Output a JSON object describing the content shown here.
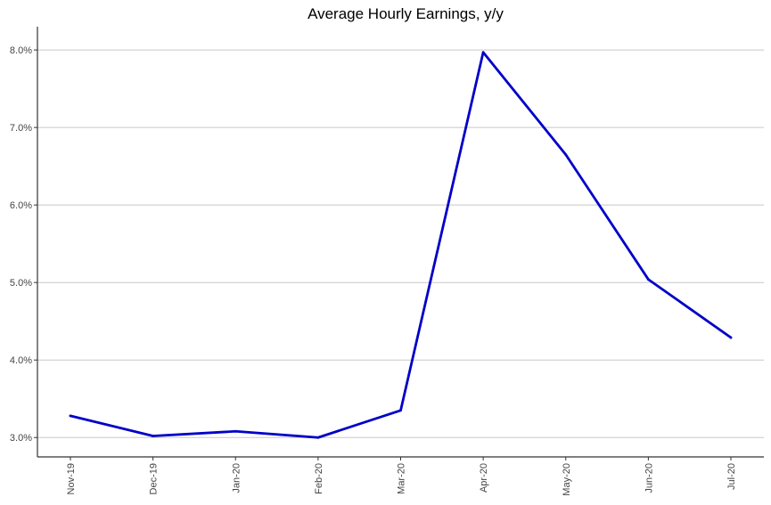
{
  "chart_data": {
    "type": "line",
    "title": "Average Hourly Earnings, y/y",
    "xlabel": "",
    "ylabel": "",
    "categories": [
      "Nov-19",
      "Dec-19",
      "Jan-20",
      "Feb-20",
      "Mar-20",
      "Apr-20",
      "May-20",
      "Jun-20",
      "Jul-20"
    ],
    "series": [
      {
        "values": [
          3.28,
          3.02,
          3.08,
          3.0,
          3.35,
          7.97,
          6.65,
          5.04,
          4.29
        ]
      }
    ],
    "yticks": [
      "3.0%",
      "4.0%",
      "5.0%",
      "6.0%",
      "7.0%",
      "8.0%"
    ],
    "ytick_values": [
      3,
      4,
      5,
      6,
      7,
      8
    ],
    "ylim": [
      2.75,
      8.3
    ],
    "grid": "horizontal",
    "line_color": "#0000c8",
    "grid_color": "#c8c8c8"
  }
}
